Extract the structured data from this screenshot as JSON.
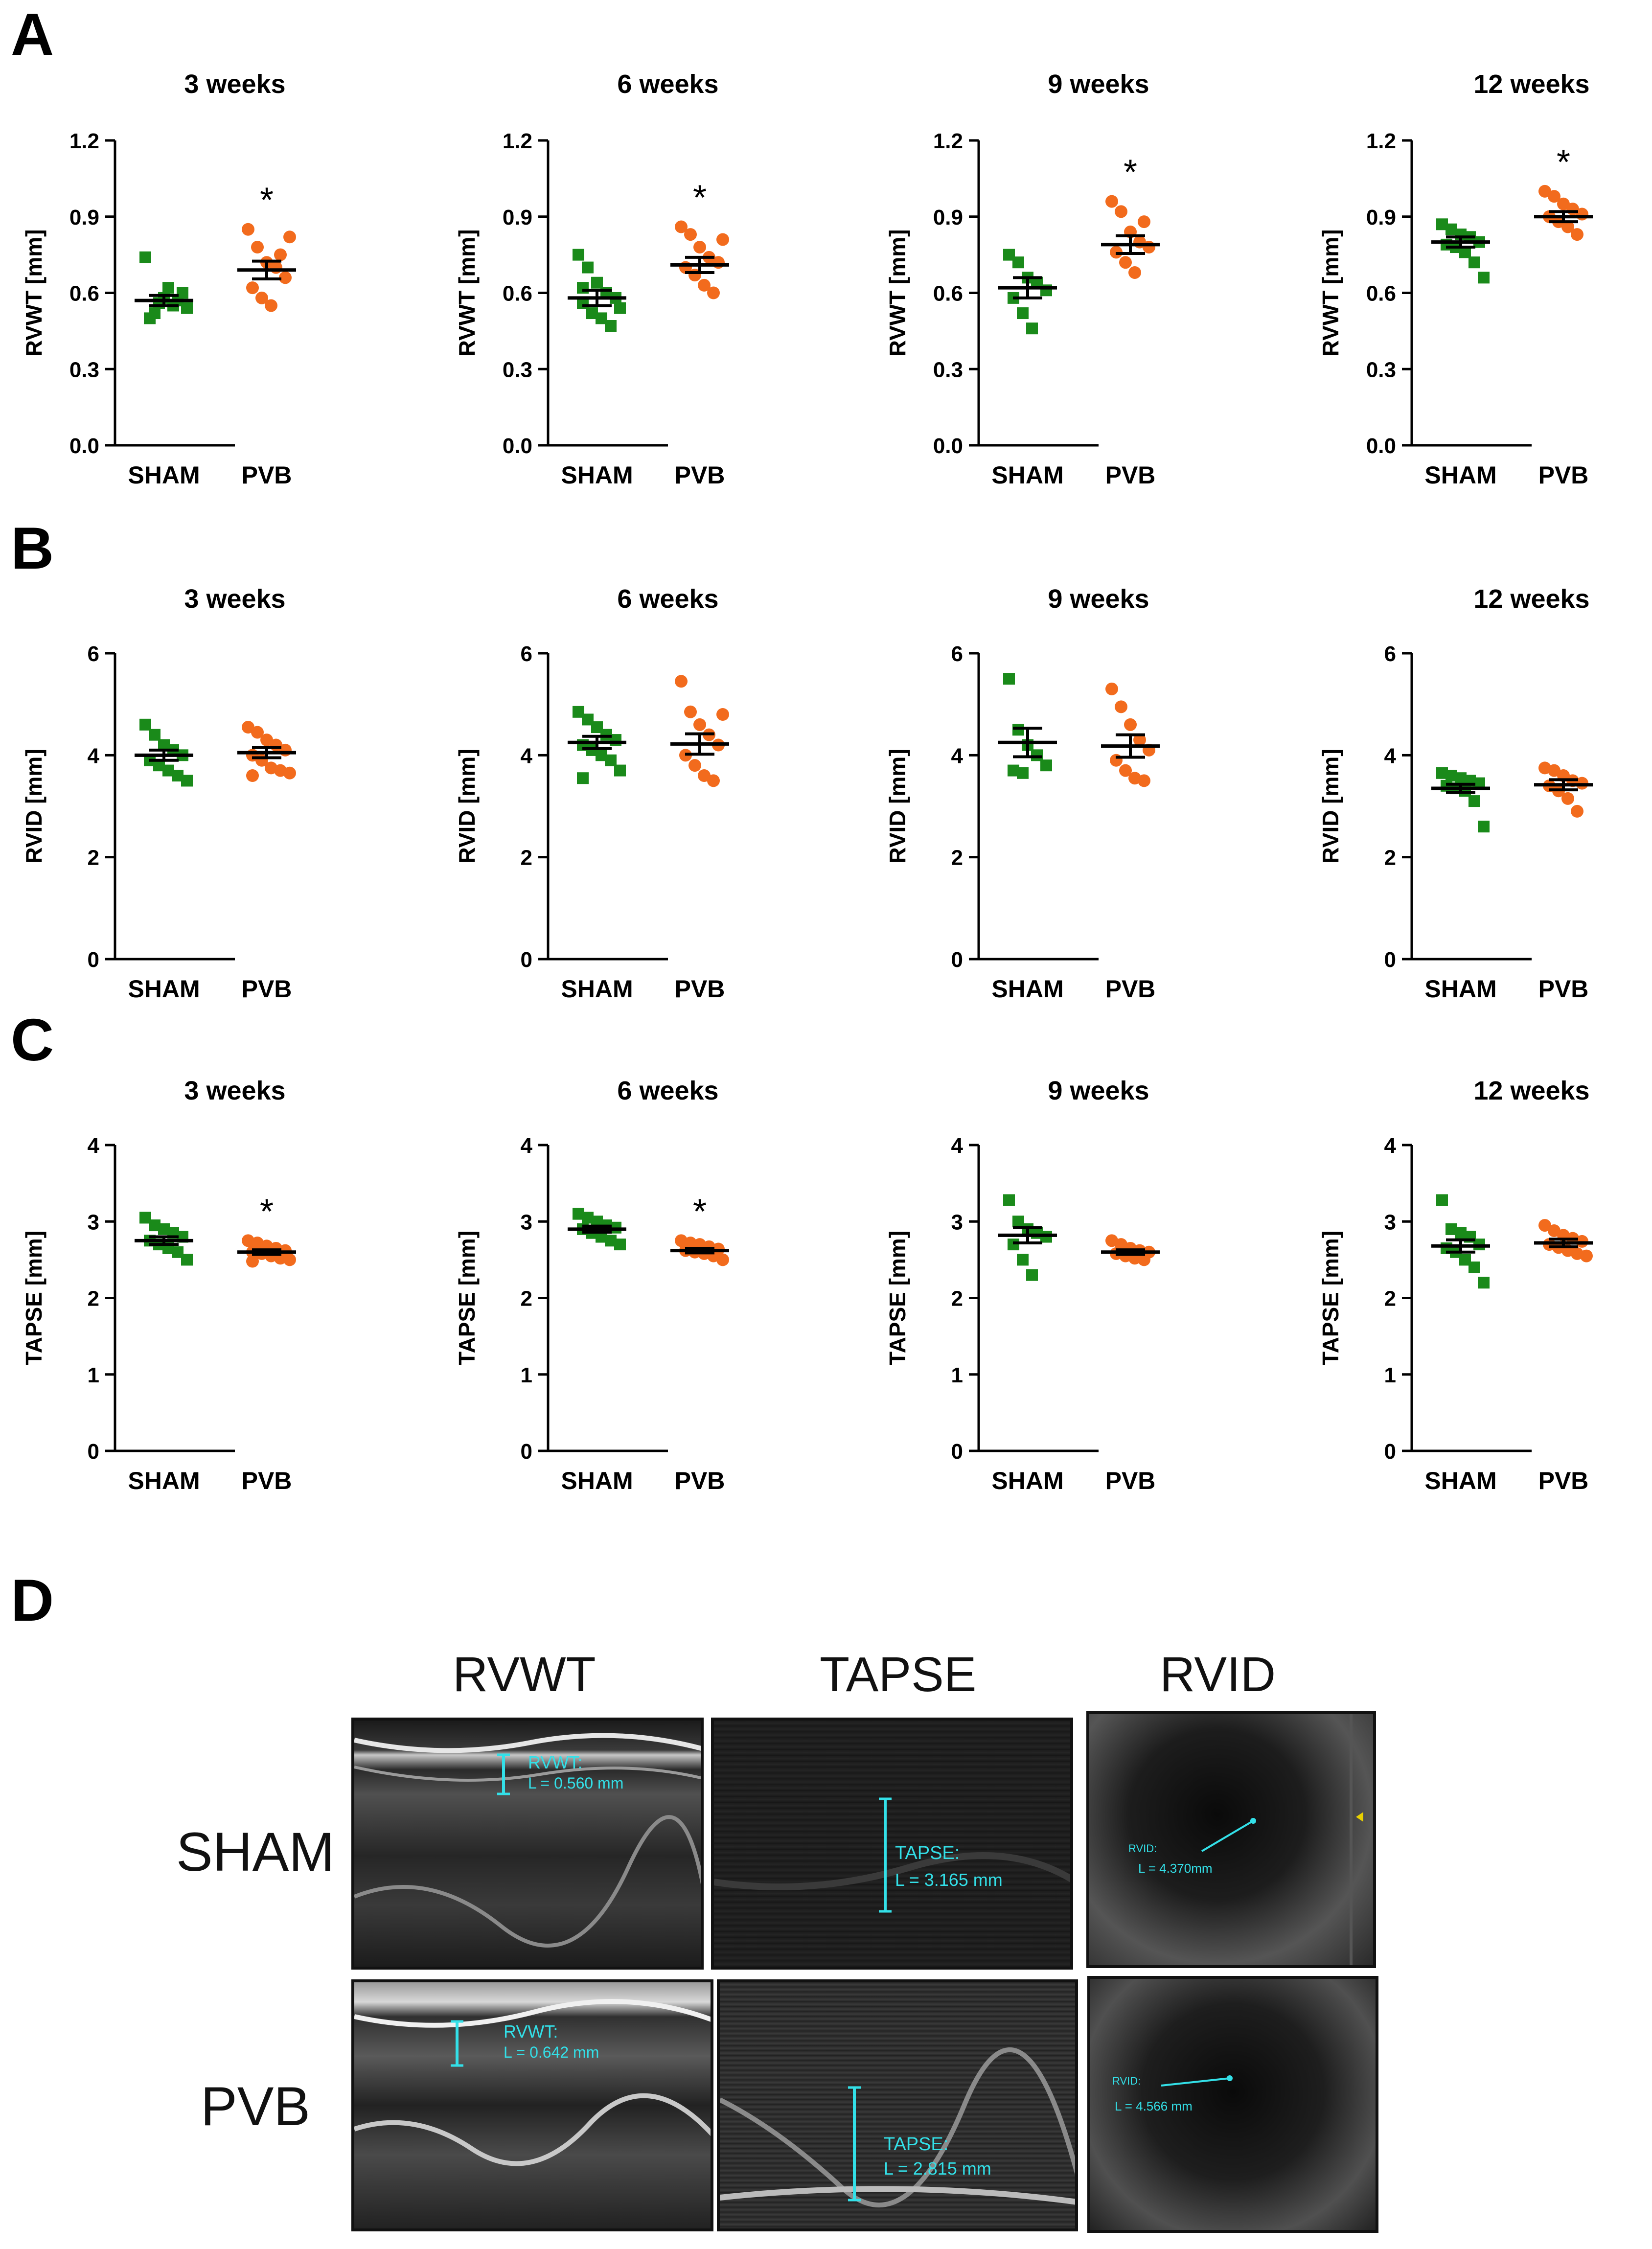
{
  "panel_letters": {
    "a": "A",
    "b": "B",
    "c": "C",
    "d": "D"
  },
  "colors": {
    "sham": "#1a8a1a",
    "pvb": "#f26b1d",
    "axis": "#000000",
    "cyan": "#33e0e8"
  },
  "chart_data": [
    {
      "type": "scatter",
      "row": "A",
      "title": "3 weeks",
      "ylabel": "RVWT [mm]",
      "ylim": [
        0,
        1.2
      ],
      "yticks": [
        "0.0",
        "0.3",
        "0.6",
        "0.9",
        "1.2"
      ],
      "categories": [
        "SHAM",
        "PVB"
      ],
      "series": [
        {
          "name": "SHAM",
          "mean": 0.57,
          "sem": 0.02,
          "values": [
            0.74,
            0.52,
            0.58,
            0.55,
            0.6,
            0.5,
            0.56,
            0.62,
            0.57,
            0.54
          ]
        },
        {
          "name": "PVB",
          "mean": 0.69,
          "sem": 0.035,
          "values": [
            0.85,
            0.78,
            0.72,
            0.7,
            0.66,
            0.62,
            0.58,
            0.55,
            0.75,
            0.82
          ]
        }
      ],
      "annotation": "*",
      "annotation_series": 1
    },
    {
      "type": "scatter",
      "row": "A",
      "title": "6 weeks",
      "ylabel": "RVWT [mm]",
      "ylim": [
        0,
        1.2
      ],
      "yticks": [
        "0.0",
        "0.3",
        "0.6",
        "0.9",
        "1.2"
      ],
      "categories": [
        "SHAM",
        "PVB"
      ],
      "series": [
        {
          "name": "SHAM",
          "mean": 0.58,
          "sem": 0.03,
          "values": [
            0.75,
            0.7,
            0.64,
            0.6,
            0.58,
            0.56,
            0.52,
            0.5,
            0.47,
            0.54,
            0.62
          ]
        },
        {
          "name": "PVB",
          "mean": 0.71,
          "sem": 0.03,
          "values": [
            0.86,
            0.83,
            0.78,
            0.74,
            0.72,
            0.7,
            0.67,
            0.63,
            0.6,
            0.81
          ]
        }
      ],
      "annotation": "*",
      "annotation_series": 1
    },
    {
      "type": "scatter",
      "row": "A",
      "title": "9 weeks",
      "ylabel": "RVWT [mm]",
      "ylim": [
        0,
        1.2
      ],
      "yticks": [
        "0.0",
        "0.3",
        "0.6",
        "0.9",
        "1.2"
      ],
      "categories": [
        "SHAM",
        "PVB"
      ],
      "series": [
        {
          "name": "SHAM",
          "mean": 0.62,
          "sem": 0.04,
          "values": [
            0.75,
            0.72,
            0.66,
            0.64,
            0.61,
            0.58,
            0.52,
            0.46
          ]
        },
        {
          "name": "PVB",
          "mean": 0.79,
          "sem": 0.035,
          "values": [
            0.96,
            0.92,
            0.84,
            0.8,
            0.78,
            0.76,
            0.72,
            0.68,
            0.88
          ]
        }
      ],
      "annotation": "*",
      "annotation_series": 1
    },
    {
      "type": "scatter",
      "row": "A",
      "title": "12 weeks",
      "ylabel": "RVWT [mm]",
      "ylim": [
        0,
        1.2
      ],
      "yticks": [
        "0.0",
        "0.3",
        "0.6",
        "0.9",
        "1.2"
      ],
      "categories": [
        "SHAM",
        "PVB"
      ],
      "series": [
        {
          "name": "SHAM",
          "mean": 0.8,
          "sem": 0.02,
          "values": [
            0.87,
            0.85,
            0.83,
            0.82,
            0.8,
            0.79,
            0.78,
            0.76,
            0.72,
            0.66
          ]
        },
        {
          "name": "PVB",
          "mean": 0.9,
          "sem": 0.02,
          "values": [
            1.0,
            0.98,
            0.95,
            0.93,
            0.91,
            0.9,
            0.88,
            0.86,
            0.83
          ]
        }
      ],
      "annotation": "*",
      "annotation_series": 1
    },
    {
      "type": "scatter",
      "row": "B",
      "title": "3 weeks",
      "ylabel": "RVID [mm]",
      "ylim": [
        0,
        6
      ],
      "yticks": [
        "0",
        "2",
        "4",
        "6"
      ],
      "categories": [
        "SHAM",
        "PVB"
      ],
      "series": [
        {
          "name": "SHAM",
          "mean": 4.0,
          "sem": 0.1,
          "values": [
            4.6,
            4.4,
            4.2,
            4.1,
            4.0,
            3.9,
            3.8,
            3.7,
            3.6,
            3.5
          ]
        },
        {
          "name": "PVB",
          "mean": 4.05,
          "sem": 0.1,
          "values": [
            4.55,
            4.45,
            4.3,
            4.2,
            4.1,
            4.0,
            3.9,
            3.75,
            3.7,
            3.65,
            3.6
          ]
        }
      ],
      "annotation": "",
      "annotation_series": 1
    },
    {
      "type": "scatter",
      "row": "B",
      "title": "6 weeks",
      "ylabel": "RVID [mm]",
      "ylim": [
        0,
        6
      ],
      "yticks": [
        "0",
        "2",
        "4",
        "6"
      ],
      "categories": [
        "SHAM",
        "PVB"
      ],
      "series": [
        {
          "name": "SHAM",
          "mean": 4.25,
          "sem": 0.12,
          "values": [
            4.85,
            4.7,
            4.55,
            4.4,
            4.3,
            4.2,
            4.1,
            4.0,
            3.9,
            3.7,
            3.55
          ]
        },
        {
          "name": "PVB",
          "mean": 4.22,
          "sem": 0.2,
          "values": [
            5.45,
            4.85,
            4.6,
            4.4,
            4.2,
            4.0,
            3.8,
            3.6,
            3.5,
            4.8
          ]
        }
      ],
      "annotation": "",
      "annotation_series": 1
    },
    {
      "type": "scatter",
      "row": "B",
      "title": "9 weeks",
      "ylabel": "RVID [mm]",
      "ylim": [
        0,
        6
      ],
      "yticks": [
        "0",
        "2",
        "4",
        "6"
      ],
      "categories": [
        "SHAM",
        "PVB"
      ],
      "series": [
        {
          "name": "SHAM",
          "mean": 4.25,
          "sem": 0.28,
          "values": [
            5.5,
            4.5,
            4.2,
            4.0,
            3.8,
            3.7,
            3.65
          ]
        },
        {
          "name": "PVB",
          "mean": 4.18,
          "sem": 0.22,
          "values": [
            5.3,
            4.95,
            4.6,
            4.3,
            4.1,
            3.9,
            3.7,
            3.55,
            3.5
          ]
        }
      ],
      "annotation": "",
      "annotation_series": 1
    },
    {
      "type": "scatter",
      "row": "B",
      "title": "12 weeks",
      "ylabel": "RVID [mm]",
      "ylim": [
        0,
        6
      ],
      "yticks": [
        "0",
        "2",
        "4",
        "6"
      ],
      "categories": [
        "SHAM",
        "PVB"
      ],
      "series": [
        {
          "name": "SHAM",
          "mean": 3.35,
          "sem": 0.08,
          "values": [
            3.65,
            3.6,
            3.55,
            3.5,
            3.45,
            3.4,
            3.35,
            3.3,
            3.1,
            2.6
          ]
        },
        {
          "name": "PVB",
          "mean": 3.42,
          "sem": 0.1,
          "values": [
            3.75,
            3.7,
            3.6,
            3.5,
            3.45,
            3.4,
            3.3,
            3.15,
            2.9
          ]
        }
      ],
      "annotation": "",
      "annotation_series": 1
    },
    {
      "type": "scatter",
      "row": "C",
      "title": "3 weeks",
      "ylabel": "TAPSE [mm]",
      "ylim": [
        0,
        4
      ],
      "yticks": [
        "0",
        "1",
        "2",
        "3",
        "4"
      ],
      "categories": [
        "SHAM",
        "PVB"
      ],
      "series": [
        {
          "name": "SHAM",
          "mean": 2.75,
          "sem": 0.05,
          "values": [
            3.05,
            2.95,
            2.9,
            2.85,
            2.8,
            2.75,
            2.7,
            2.65,
            2.6,
            2.5
          ]
        },
        {
          "name": "PVB",
          "mean": 2.6,
          "sem": 0.03,
          "values": [
            2.75,
            2.72,
            2.68,
            2.65,
            2.62,
            2.6,
            2.58,
            2.55,
            2.52,
            2.5,
            2.48
          ]
        }
      ],
      "annotation": "*",
      "annotation_series": 1
    },
    {
      "type": "scatter",
      "row": "C",
      "title": "6 weeks",
      "ylabel": "TAPSE [mm]",
      "ylim": [
        0,
        4
      ],
      "yticks": [
        "0",
        "1",
        "2",
        "3",
        "4"
      ],
      "categories": [
        "SHAM",
        "PVB"
      ],
      "series": [
        {
          "name": "SHAM",
          "mean": 2.9,
          "sem": 0.04,
          "values": [
            3.1,
            3.05,
            3.0,
            2.95,
            2.92,
            2.9,
            2.85,
            2.8,
            2.75,
            2.7
          ]
        },
        {
          "name": "PVB",
          "mean": 2.62,
          "sem": 0.03,
          "values": [
            2.75,
            2.72,
            2.7,
            2.67,
            2.64,
            2.62,
            2.6,
            2.58,
            2.55,
            2.5
          ]
        }
      ],
      "annotation": "*",
      "annotation_series": 1
    },
    {
      "type": "scatter",
      "row": "C",
      "title": "9 weeks",
      "ylabel": "TAPSE [mm]",
      "ylim": [
        0,
        4
      ],
      "yticks": [
        "0",
        "1",
        "2",
        "3",
        "4"
      ],
      "categories": [
        "SHAM",
        "PVB"
      ],
      "series": [
        {
          "name": "SHAM",
          "mean": 2.82,
          "sem": 0.1,
          "values": [
            3.28,
            3.0,
            2.9,
            2.85,
            2.8,
            2.7,
            2.5,
            2.3
          ]
        },
        {
          "name": "PVB",
          "mean": 2.6,
          "sem": 0.03,
          "values": [
            2.75,
            2.7,
            2.65,
            2.62,
            2.6,
            2.58,
            2.55,
            2.52,
            2.5
          ]
        }
      ],
      "annotation": "",
      "annotation_series": 1
    },
    {
      "type": "scatter",
      "row": "C",
      "title": "12 weeks",
      "ylabel": "TAPSE [mm]",
      "ylim": [
        0,
        4
      ],
      "yticks": [
        "0",
        "1",
        "2",
        "3",
        "4"
      ],
      "categories": [
        "SHAM",
        "PVB"
      ],
      "series": [
        {
          "name": "SHAM",
          "mean": 2.68,
          "sem": 0.08,
          "values": [
            3.28,
            2.9,
            2.85,
            2.8,
            2.7,
            2.65,
            2.6,
            2.5,
            2.4,
            2.2
          ]
        },
        {
          "name": "PVB",
          "mean": 2.72,
          "sem": 0.05,
          "values": [
            2.95,
            2.88,
            2.82,
            2.78,
            2.74,
            2.7,
            2.66,
            2.62,
            2.58,
            2.55
          ]
        }
      ],
      "annotation": "",
      "annotation_series": 1
    }
  ],
  "ultrasound": {
    "column_titles": [
      "RVWT",
      "TAPSE",
      "RVID"
    ],
    "row_labels": [
      "SHAM",
      "PVB"
    ],
    "sham": {
      "rvwt_label": "RVWT:",
      "rvwt_value": "L = 0.560 mm",
      "tapse_label": "TAPSE:",
      "tapse_value": "L = 3.165 mm",
      "rvid_label": "RVID:",
      "rvid_value": "L = 4.370mm"
    },
    "pvb": {
      "rvwt_label": "RVWT:",
      "rvwt_value": "L = 0.642 mm",
      "tapse_label": "TAPSE:",
      "tapse_value": "L = 2.815 mm",
      "rvid_label": "RVID:",
      "rvid_value": "L = 4.566 mm"
    }
  }
}
